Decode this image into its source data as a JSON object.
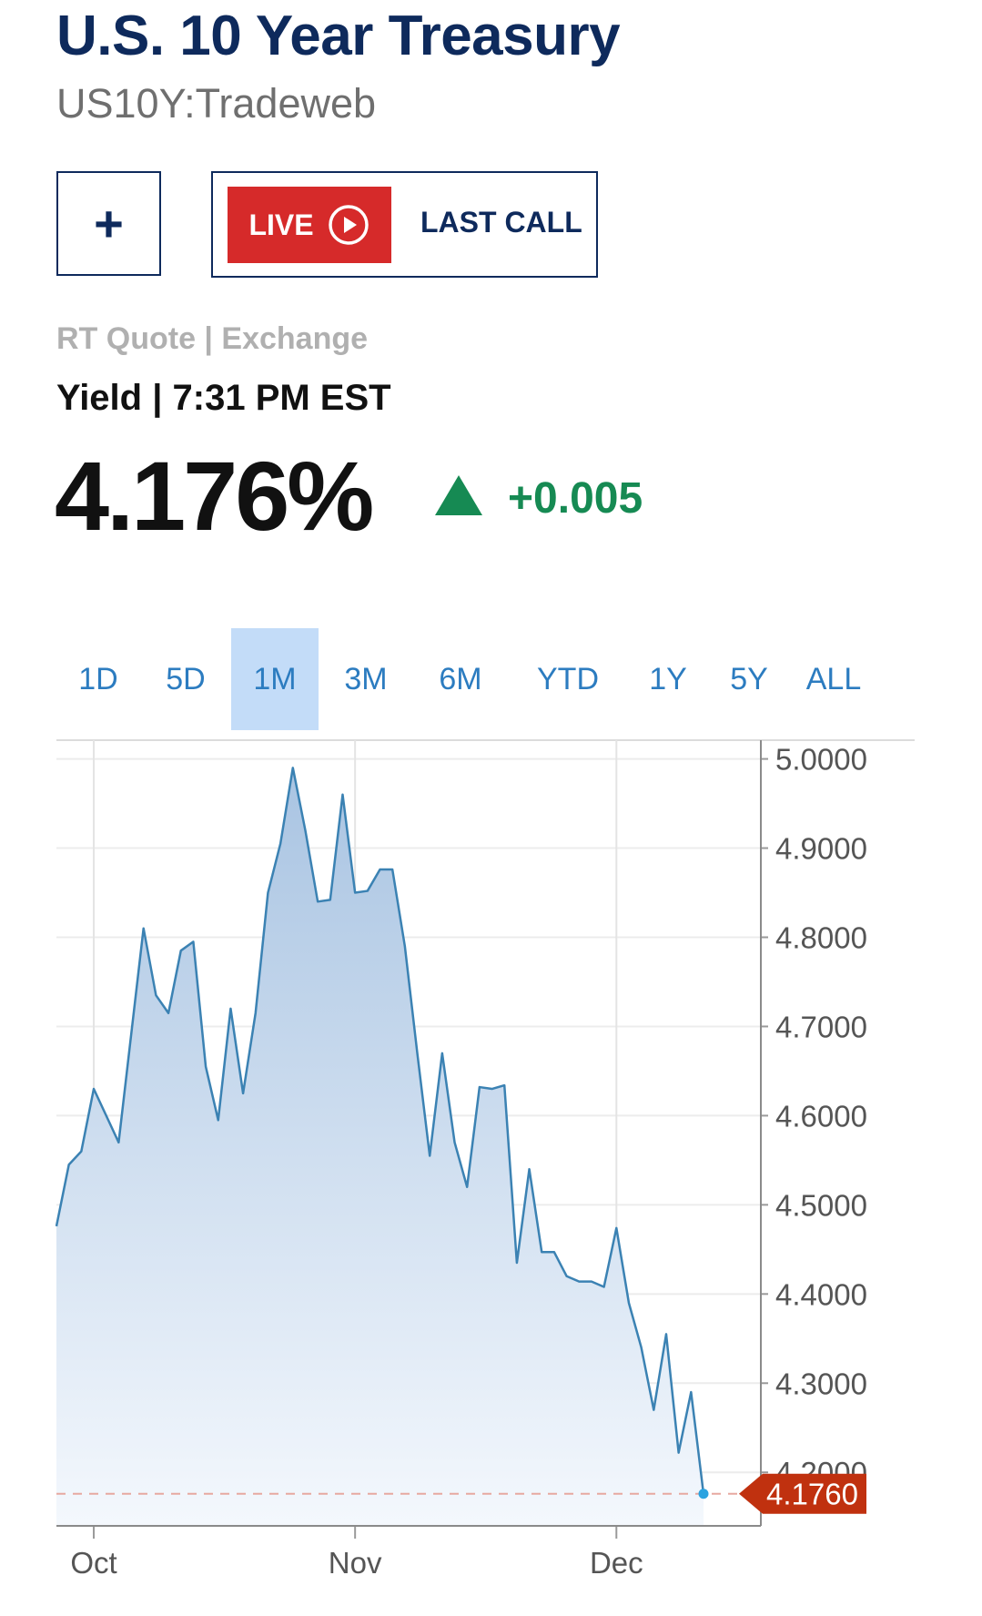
{
  "header": {
    "title": "U.S. 10 Year Treasury",
    "symbol": "US10Y:Tradeweb"
  },
  "actions": {
    "add_label": "+",
    "live_label": "LIVE",
    "last_call_label": "LAST CALL"
  },
  "quote": {
    "source": "RT Quote | Exchange",
    "type_time": "Yield | 7:31 PM EST",
    "price": "4.176%",
    "change": "+0.005"
  },
  "colors": {
    "title": "#0e2a5c",
    "live_red": "#d62a2a",
    "up_green": "#168a53",
    "line": "#3b82b3",
    "fill": "#b3cce6",
    "tab_active": "#c3dcf8",
    "price_tag": "#c0310f"
  },
  "tabs": [
    {
      "label": "1D",
      "active": false
    },
    {
      "label": "5D",
      "active": false
    },
    {
      "label": "1M",
      "active": true
    },
    {
      "label": "3M",
      "active": false
    },
    {
      "label": "6M",
      "active": false
    },
    {
      "label": "YTD",
      "active": false
    },
    {
      "label": "1Y",
      "active": false
    },
    {
      "label": "5Y",
      "active": false
    },
    {
      "label": "ALL",
      "active": false
    }
  ],
  "chart_data": {
    "type": "area",
    "title": "",
    "xlabel": "",
    "ylabel": "",
    "ylim": [
      4.14,
      5.02
    ],
    "y_ticks": [
      "5.0000",
      "4.9000",
      "4.8000",
      "4.7000",
      "4.6000",
      "4.5000",
      "4.4000",
      "4.3000",
      "4.2000"
    ],
    "x_ticks": [
      {
        "label": "Oct",
        "index": 3
      },
      {
        "label": "Nov",
        "index": 24
      },
      {
        "label": "Dec",
        "index": 45
      }
    ],
    "current_value": "4.1760",
    "series": [
      {
        "values": [
          4.476,
          4.545,
          4.56,
          4.63,
          4.6,
          4.57,
          4.69,
          4.81,
          4.735,
          4.715,
          4.785,
          4.795,
          4.655,
          4.595,
          4.72,
          4.625,
          4.715,
          4.85,
          4.905,
          4.99,
          4.92,
          4.84,
          4.842,
          4.96,
          4.85,
          4.852,
          4.876,
          4.876,
          4.79,
          4.67,
          4.555,
          4.67,
          4.57,
          4.52,
          4.632,
          4.63,
          4.634,
          4.435,
          4.54,
          4.447,
          4.447,
          4.42,
          4.414,
          4.414,
          4.408,
          4.474,
          4.39,
          4.34,
          4.27,
          4.355,
          4.222,
          4.29,
          4.176
        ]
      }
    ]
  }
}
